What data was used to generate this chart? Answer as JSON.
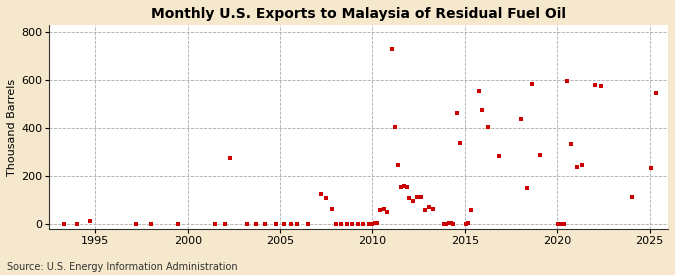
{
  "title": "Monthly U.S. Exports to Malaysia of Residual Fuel Oil",
  "ylabel": "Thousand Barrels",
  "source": "Source: U.S. Energy Information Administration",
  "xlim": [
    1992.5,
    2026.0
  ],
  "ylim": [
    -20,
    830
  ],
  "yticks": [
    0,
    200,
    400,
    600,
    800
  ],
  "xticks": [
    1995,
    2000,
    2005,
    2010,
    2015,
    2020,
    2025
  ],
  "background_color": "#f5e8cc",
  "plot_bg_color": "#ffffff",
  "marker_color": "#cc0000",
  "data_points": [
    [
      1993.3,
      2
    ],
    [
      1994.0,
      2
    ],
    [
      1994.7,
      12
    ],
    [
      1997.2,
      2
    ],
    [
      1998.0,
      2
    ],
    [
      1999.5,
      2
    ],
    [
      2001.5,
      2
    ],
    [
      2002.0,
      2
    ],
    [
      2003.2,
      2
    ],
    [
      2003.7,
      2
    ],
    [
      2004.2,
      2
    ],
    [
      2004.8,
      2
    ],
    [
      2002.3,
      275
    ],
    [
      2005.2,
      2
    ],
    [
      2005.6,
      2
    ],
    [
      2005.9,
      2
    ],
    [
      2006.5,
      2
    ],
    [
      2007.2,
      125
    ],
    [
      2007.5,
      108
    ],
    [
      2007.8,
      65
    ],
    [
      2008.0,
      2
    ],
    [
      2008.3,
      2
    ],
    [
      2008.6,
      2
    ],
    [
      2008.9,
      2
    ],
    [
      2009.2,
      2
    ],
    [
      2009.5,
      2
    ],
    [
      2009.8,
      2
    ],
    [
      2010.0,
      2
    ],
    [
      2010.15,
      5
    ],
    [
      2010.25,
      5
    ],
    [
      2010.4,
      60
    ],
    [
      2010.6,
      65
    ],
    [
      2010.8,
      50
    ],
    [
      2011.05,
      730
    ],
    [
      2011.2,
      405
    ],
    [
      2011.4,
      245
    ],
    [
      2011.55,
      155
    ],
    [
      2011.7,
      160
    ],
    [
      2011.85,
      155
    ],
    [
      2012.0,
      108
    ],
    [
      2012.2,
      95
    ],
    [
      2012.4,
      112
    ],
    [
      2012.6,
      112
    ],
    [
      2012.85,
      58
    ],
    [
      2013.05,
      72
    ],
    [
      2013.25,
      65
    ],
    [
      2013.85,
      2
    ],
    [
      2014.0,
      2
    ],
    [
      2014.15,
      5
    ],
    [
      2014.25,
      5
    ],
    [
      2014.35,
      2
    ],
    [
      2014.55,
      465
    ],
    [
      2014.75,
      340
    ],
    [
      2015.05,
      2
    ],
    [
      2015.15,
      5
    ],
    [
      2015.35,
      60
    ],
    [
      2015.75,
      555
    ],
    [
      2015.95,
      475
    ],
    [
      2016.25,
      405
    ],
    [
      2016.85,
      285
    ],
    [
      2018.05,
      440
    ],
    [
      2018.35,
      150
    ],
    [
      2018.65,
      585
    ],
    [
      2019.05,
      290
    ],
    [
      2020.05,
      2
    ],
    [
      2020.15,
      2
    ],
    [
      2020.35,
      2
    ],
    [
      2020.55,
      595
    ],
    [
      2020.75,
      335
    ],
    [
      2021.05,
      240
    ],
    [
      2021.35,
      245
    ],
    [
      2022.05,
      580
    ],
    [
      2022.35,
      575
    ],
    [
      2024.05,
      115
    ],
    [
      2025.05,
      235
    ],
    [
      2025.35,
      545
    ]
  ]
}
